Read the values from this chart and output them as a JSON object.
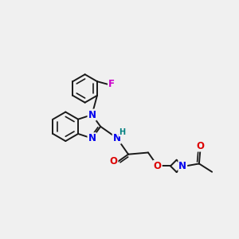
{
  "background_color": "#f0f0f0",
  "bond_color": "#1a1a1a",
  "bond_width": 1.4,
  "atom_colors": {
    "N": "#0000ee",
    "O": "#dd0000",
    "F": "#cc00cc",
    "H": "#008080",
    "C": "#1a1a1a"
  },
  "font_size": 8.5,
  "fig_width": 3.0,
  "fig_height": 3.0,
  "dpi": 100,
  "xlim": [
    -1.5,
    8.5
  ],
  "ylim": [
    -1.5,
    8.5
  ]
}
